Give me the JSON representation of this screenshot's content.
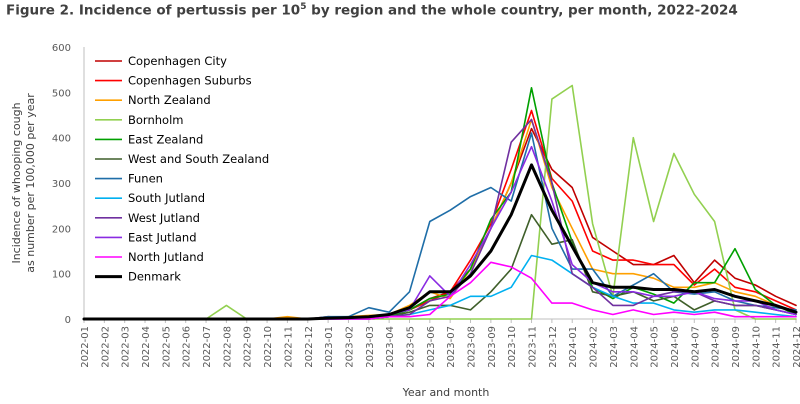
{
  "chart_data": {
    "type": "line",
    "title_prefix": "Figure 2. Incidence of pertussis per 10",
    "title_sup": "5",
    "title_suffix": " by region and the whole country, per month, 2022-2024",
    "xlabel": "Year and month",
    "ylabel_line1": "Incidence of whooping cough",
    "ylabel_line2": "as number per 100,000 per year",
    "ylim": [
      0,
      600
    ],
    "yticks": [
      0,
      100,
      200,
      300,
      400,
      500,
      600
    ],
    "grid": false,
    "legend_position": "upper-left",
    "categories": [
      "2022-01",
      "2022-02",
      "2022-03",
      "2022-04",
      "2022-05",
      "2022-06",
      "2022-07",
      "2022-08",
      "2022-09",
      "2022-10",
      "2022-11",
      "2022-12",
      "2023-01",
      "2023-02",
      "2023-03",
      "2023-04",
      "2023-05",
      "2023-06",
      "2023-07",
      "2023-08",
      "2023-09",
      "2023-10",
      "2023-11",
      "2023-12",
      "2024-01",
      "2024-02",
      "2024-03",
      "2024-04",
      "2024-05",
      "2024-06",
      "2024-07",
      "2024-08",
      "2024-09",
      "2024-10",
      "2024-11",
      "2024-12"
    ],
    "series": [
      {
        "name": "Copenhagen City",
        "color": "#c00000",
        "width": 1.6,
        "values": [
          0,
          0,
          0,
          0,
          0,
          0,
          0,
          0,
          0,
          0,
          0,
          0,
          5,
          3,
          5,
          10,
          20,
          45,
          60,
          110,
          200,
          300,
          420,
          330,
          290,
          180,
          150,
          120,
          120,
          140,
          80,
          130,
          90,
          75,
          50,
          30
        ]
      },
      {
        "name": "Copenhagen Suburbs",
        "color": "#ff0000",
        "width": 1.6,
        "values": [
          0,
          0,
          0,
          0,
          0,
          0,
          0,
          0,
          0,
          0,
          0,
          0,
          3,
          3,
          5,
          8,
          20,
          40,
          60,
          130,
          210,
          330,
          460,
          310,
          260,
          150,
          130,
          130,
          120,
          120,
          75,
          110,
          70,
          60,
          40,
          20
        ]
      },
      {
        "name": "North Zealand",
        "color": "#ffa000",
        "width": 1.6,
        "values": [
          0,
          0,
          0,
          0,
          0,
          0,
          0,
          0,
          0,
          0,
          5,
          0,
          3,
          5,
          8,
          10,
          30,
          60,
          45,
          110,
          200,
          300,
          440,
          290,
          200,
          110,
          100,
          100,
          90,
          70,
          70,
          80,
          60,
          50,
          30,
          15
        ]
      },
      {
        "name": "Bornholm",
        "color": "#92d050",
        "width": 1.6,
        "values": [
          0,
          0,
          0,
          0,
          0,
          0,
          0,
          30,
          0,
          0,
          0,
          0,
          0,
          0,
          0,
          0,
          0,
          0,
          0,
          0,
          0,
          0,
          0,
          485,
          515,
          210,
          50,
          400,
          215,
          365,
          275,
          215,
          20,
          0,
          0,
          0
        ]
      },
      {
        "name": "East Zealand",
        "color": "#00a000",
        "width": 1.6,
        "values": [
          0,
          0,
          0,
          0,
          0,
          0,
          0,
          0,
          0,
          0,
          0,
          0,
          0,
          0,
          0,
          5,
          20,
          45,
          55,
          110,
          220,
          280,
          510,
          300,
          170,
          70,
          45,
          70,
          55,
          35,
          80,
          80,
          155,
          65,
          30,
          10
        ]
      },
      {
        "name": "West and South Zealand",
        "color": "#3f5f2a",
        "width": 1.6,
        "values": [
          0,
          0,
          0,
          0,
          0,
          0,
          0,
          0,
          0,
          0,
          0,
          0,
          0,
          0,
          0,
          5,
          15,
          30,
          30,
          20,
          60,
          110,
          230,
          165,
          175,
          60,
          50,
          60,
          40,
          50,
          20,
          40,
          30,
          30,
          20,
          10
        ]
      },
      {
        "name": "Funen",
        "color": "#1f6ea8",
        "width": 1.6,
        "values": [
          0,
          0,
          0,
          0,
          0,
          0,
          0,
          0,
          0,
          0,
          0,
          0,
          5,
          5,
          25,
          15,
          60,
          215,
          240,
          270,
          290,
          260,
          410,
          200,
          110,
          110,
          50,
          75,
          100,
          60,
          55,
          60,
          40,
          30,
          25,
          20
        ]
      },
      {
        "name": "South Jutland",
        "color": "#00b0f0",
        "width": 1.6,
        "values": [
          0,
          0,
          0,
          0,
          0,
          0,
          0,
          0,
          0,
          0,
          0,
          0,
          0,
          0,
          0,
          5,
          10,
          20,
          30,
          50,
          50,
          70,
          140,
          130,
          100,
          70,
          50,
          35,
          35,
          20,
          15,
          20,
          20,
          15,
          10,
          5
        ]
      },
      {
        "name": "West Jutland",
        "color": "#7030a0",
        "width": 1.6,
        "values": [
          0,
          0,
          0,
          0,
          0,
          0,
          0,
          0,
          0,
          0,
          0,
          0,
          0,
          0,
          0,
          5,
          10,
          40,
          50,
          100,
          200,
          390,
          440,
          300,
          100,
          70,
          30,
          30,
          50,
          60,
          60,
          40,
          30,
          30,
          20,
          10
        ]
      },
      {
        "name": "East Jutland",
        "color": "#8a2be2",
        "width": 1.6,
        "values": [
          0,
          0,
          0,
          0,
          0,
          0,
          0,
          0,
          0,
          0,
          0,
          0,
          0,
          0,
          5,
          10,
          20,
          95,
          50,
          120,
          200,
          280,
          380,
          260,
          120,
          80,
          60,
          60,
          50,
          50,
          60,
          45,
          40,
          40,
          20,
          10
        ]
      },
      {
        "name": "North Jutland",
        "color": "#ff00ff",
        "width": 1.6,
        "values": [
          0,
          0,
          0,
          0,
          0,
          0,
          0,
          0,
          0,
          0,
          0,
          0,
          0,
          0,
          0,
          5,
          5,
          10,
          50,
          80,
          125,
          115,
          90,
          35,
          35,
          20,
          10,
          20,
          10,
          15,
          10,
          15,
          5,
          5,
          5,
          5
        ]
      },
      {
        "name": "Denmark",
        "color": "#000000",
        "width": 3,
        "values": [
          0,
          0,
          0,
          0,
          0,
          0,
          0,
          0,
          0,
          0,
          0,
          0,
          2,
          3,
          5,
          10,
          25,
          60,
          60,
          95,
          150,
          230,
          340,
          240,
          160,
          80,
          70,
          70,
          65,
          65,
          60,
          65,
          50,
          40,
          30,
          15
        ]
      }
    ]
  }
}
